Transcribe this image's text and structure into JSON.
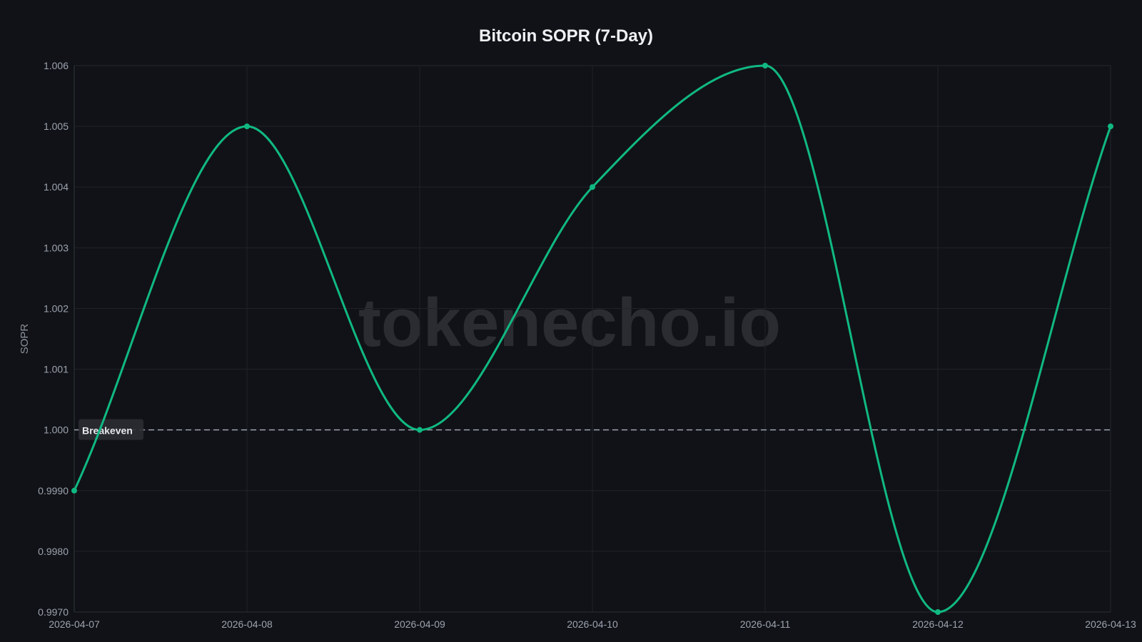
{
  "chart_data": {
    "type": "line",
    "title": "Bitcoin SOPR (7-Day)",
    "xlabel": "",
    "ylabel": "SOPR",
    "x": [
      "2026-04-07",
      "2026-04-08",
      "2026-04-09",
      "2026-04-10",
      "2026-04-11",
      "2026-04-12",
      "2026-04-13"
    ],
    "series": [
      {
        "values": [
          0.999,
          1.005,
          1.0,
          1.004,
          1.006,
          0.997,
          1.005
        ],
        "color": "#10b981"
      }
    ],
    "ylim": [
      0.997,
      1.006
    ],
    "yticks": [
      0.997,
      0.998,
      0.999,
      1.0,
      1.001,
      1.002,
      1.003,
      1.004,
      1.005,
      1.006
    ],
    "ytick_labels": [
      "0.9970",
      "0.9980",
      "0.9990",
      "1.000",
      "1.001",
      "1.002",
      "1.003",
      "1.004",
      "1.005",
      "1.006"
    ],
    "grid": true,
    "interpolation": "smooth",
    "reference_line": {
      "y": 1.0,
      "label": "Breakeven",
      "style": "dashed",
      "color": "#9ca3af"
    },
    "watermark": "tokenecho.io",
    "background": "#111217"
  }
}
